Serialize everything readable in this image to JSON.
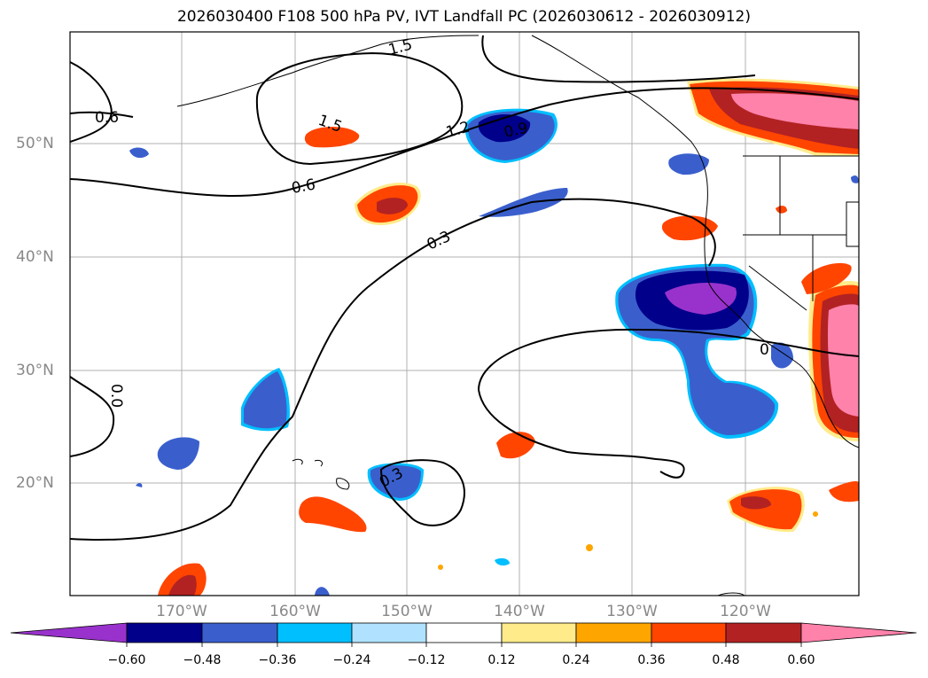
{
  "title": "2026030400 F108 500 hPa PV, IVT Landfall PC (2026030612 - 2026030912)",
  "lat_labels": [
    "50°N",
    "40°N",
    "30°N",
    "20°N"
  ],
  "lon_labels": [
    "170°W",
    "160°W",
    "150°W",
    "140°W",
    "130°W",
    "120°W"
  ],
  "contour_labels": [
    "1.5",
    "0.6",
    "1.5",
    "1.2",
    "0.9",
    "0.6",
    "0.3",
    "0.0",
    "0.3",
    "0"
  ],
  "colorbar": {
    "ticks": [
      "−0.60",
      "−0.48",
      "−0.36",
      "−0.24",
      "−0.12",
      "0.12",
      "0.24",
      "0.36",
      "0.48",
      "0.60"
    ],
    "colors": [
      "#9932cc",
      "#00008b",
      "#3a5fcd",
      "#00bfff",
      "#b0e2ff",
      "#ffffff",
      "#ffeb8a",
      "#ffa500",
      "#ff4500",
      "#b22222",
      "#ff82ab"
    ]
  },
  "fill_colors": {
    "neg_purple": "#9932cc",
    "neg_navy": "#00008b",
    "neg_blue": "#3a5fcd",
    "neg_cyan": "#00bfff",
    "pos_yellow": "#ffeb8a",
    "pos_orange": "#ffa500",
    "pos_red": "#ff4500",
    "pos_dark": "#b22222",
    "pos_pink": "#ff82ab"
  }
}
